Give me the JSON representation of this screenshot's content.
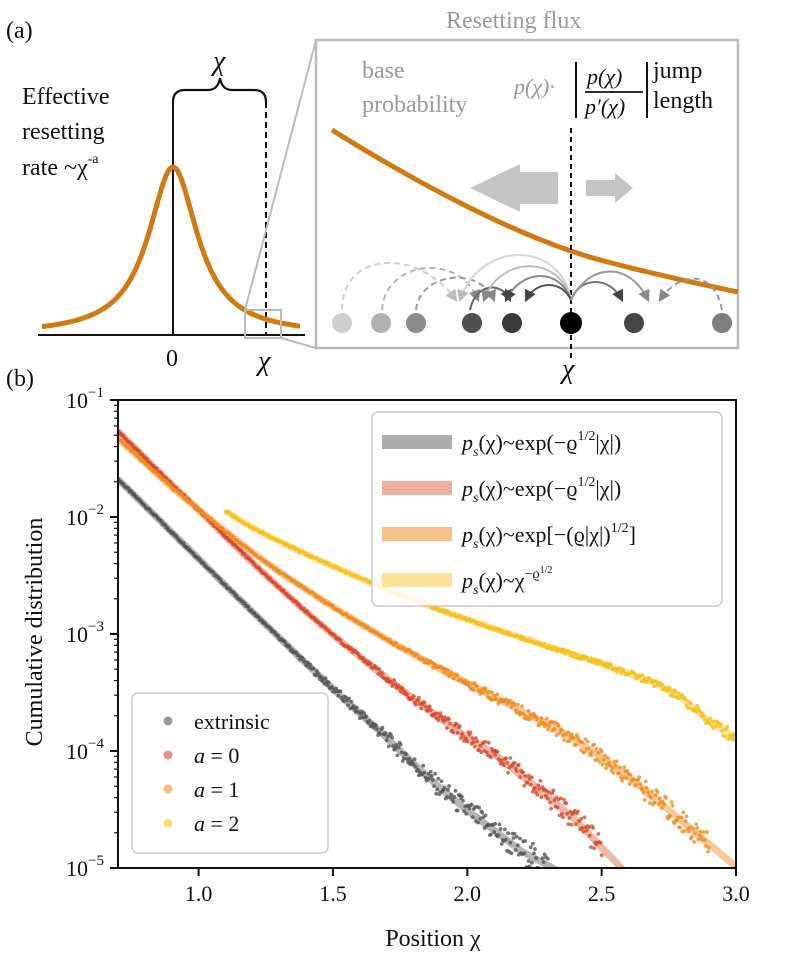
{
  "panel_a": {
    "label": "(a)",
    "chi_symbol": "χ",
    "rate_lines": [
      "Effective",
      "resetting",
      "rate ~χ"
    ],
    "rate_exponent": "-a",
    "zero_label": "0",
    "flux_title": "Resetting flux",
    "base_prob_lines": [
      "base",
      "probability"
    ],
    "formula_p": "p(χ)·",
    "formula_num": "p(χ)",
    "formula_den": "p′(χ)",
    "jump_lines": [
      "jump",
      "length"
    ],
    "inset_chi": "χ"
  },
  "panel_b": {
    "label": "(b)"
  },
  "colors": {
    "orange_curve": "#d17a12",
    "extrinsic": "#555555",
    "a0": "#d9482a",
    "a1": "#f08c1f",
    "a2": "#f3c21c",
    "fit_gray": "#9e9e9e",
    "fit_red": "#eba08c",
    "fit_orange": "#f6b774",
    "fit_yellow": "#f9dd86"
  },
  "chart_data": {
    "type": "scatter",
    "xlabel": "Position χ",
    "ylabel": "Cumulative distribution",
    "xlim": [
      0.7,
      3.0
    ],
    "ylim": [
      1e-05,
      0.1
    ],
    "yscale": "log",
    "grid": false,
    "x_ticks": [
      "1.0",
      "1.5",
      "2.0",
      "2.5",
      "3.0"
    ],
    "x_tick_values": [
      1.0,
      1.5,
      2.0,
      2.5,
      3.0
    ],
    "y_ticks": [
      {
        "base": "10",
        "exp": "−1",
        "value": 0.1
      },
      {
        "base": "10",
        "exp": "−2",
        "value": 0.01
      },
      {
        "base": "10",
        "exp": "−3",
        "value": 0.001
      },
      {
        "base": "10",
        "exp": "−4",
        "value": 0.0001
      },
      {
        "base": "10",
        "exp": "−5",
        "value": 1e-05
      }
    ],
    "legend_position": "top-right",
    "series": [
      {
        "name": "extrinsic",
        "color": "#555555",
        "x": [
          0.7,
          0.8,
          0.9,
          1.0,
          1.1,
          1.2,
          1.3,
          1.4,
          1.5,
          1.6,
          1.7,
          1.8,
          1.9,
          2.0,
          2.1,
          2.2,
          2.3
        ],
        "y": [
          0.021,
          0.0125,
          0.0074,
          0.0044,
          0.0026,
          0.00155,
          0.00093,
          0.00056,
          0.00034,
          0.00021,
          0.00013,
          7.8e-05,
          4.8e-05,
          3.1e-05,
          2.1e-05,
          1.4e-05,
          1.05e-05
        ]
      },
      {
        "name": "a = 0",
        "color": "#d9482a",
        "x": [
          0.7,
          0.8,
          0.9,
          1.0,
          1.1,
          1.2,
          1.3,
          1.4,
          1.5,
          1.6,
          1.7,
          1.8,
          1.9,
          2.0,
          2.1,
          2.2,
          2.3,
          2.4,
          2.5
        ],
        "y": [
          0.054,
          0.032,
          0.019,
          0.0115,
          0.0068,
          0.0041,
          0.0025,
          0.00155,
          0.00098,
          0.00064,
          0.00042,
          0.00028,
          0.00019,
          0.00013,
          9.5e-05,
          6.2e-05,
          4.1e-05,
          2.6e-05,
          1.5e-05
        ]
      },
      {
        "name": "a = 1",
        "color": "#f08c1f",
        "x": [
          0.7,
          0.8,
          0.9,
          1.0,
          1.1,
          1.2,
          1.3,
          1.4,
          1.5,
          1.6,
          1.7,
          1.8,
          1.9,
          2.0,
          2.1,
          2.2,
          2.3,
          2.4,
          2.5,
          2.6,
          2.7,
          2.8,
          2.9
        ],
        "y": [
          0.047,
          0.029,
          0.018,
          0.0115,
          0.0075,
          0.005,
          0.0034,
          0.0024,
          0.0017,
          0.00123,
          0.0009,
          0.00067,
          0.0005,
          0.00038,
          0.00029,
          0.00022,
          0.00017,
          0.000125,
          8.8e-05,
          6e-05,
          3.9e-05,
          2.5e-05,
          1.6e-05
        ]
      },
      {
        "name": "a = 2",
        "color": "#f3c21c",
        "x": [
          1.1,
          1.2,
          1.3,
          1.4,
          1.5,
          1.6,
          1.7,
          1.8,
          1.9,
          2.0,
          2.1,
          2.2,
          2.3,
          2.4,
          2.5,
          2.6,
          2.7,
          2.8,
          2.9,
          3.0
        ],
        "y": [
          0.0112,
          0.0081,
          0.0062,
          0.0048,
          0.0038,
          0.003,
          0.0024,
          0.00195,
          0.0016,
          0.00133,
          0.00111,
          0.00093,
          0.00078,
          0.00066,
          0.00056,
          0.00046,
          0.00038,
          0.00028,
          0.00018,
          0.00013
        ]
      }
    ],
    "fits": [
      {
        "label": "p_s(χ)~exp(−ϱ^{1/2}|χ|)",
        "color": "#9e9e9e",
        "series": "extrinsic"
      },
      {
        "label": "p_s(χ)~exp(−ϱ^{1/2}|χ|)",
        "color": "#eba08c",
        "series": "a = 0"
      },
      {
        "label": "p_s(χ)~exp[−(ϱ|χ|)^{1/2}]",
        "color": "#f6b774",
        "series": "a = 1"
      },
      {
        "label": "p_s(χ)~χ^{−ϱ^{1/2}}",
        "color": "#f9dd86",
        "series": "a = 2"
      }
    ],
    "fit_legend": [
      {
        "pre": "p",
        "sub": "s",
        "mid": "(χ)~exp(−ϱ",
        "sup": "1/2",
        "post": "|χ|)"
      },
      {
        "pre": "p",
        "sub": "s",
        "mid": "(χ)~exp(−ϱ",
        "sup": "1/2",
        "post": "|χ|)"
      },
      {
        "pre": "p",
        "sub": "s",
        "mid": "(χ)~exp[−(ϱ|χ|)",
        "sup": "1/2",
        "post": "]"
      },
      {
        "pre": "p",
        "sub": "s",
        "mid": "(χ)~χ",
        "sup": "−ϱ",
        "sup2": "1/2",
        "post": ""
      }
    ],
    "marker_legend": [
      "extrinsic",
      "a = 0",
      "a = 1",
      "a = 2"
    ]
  }
}
